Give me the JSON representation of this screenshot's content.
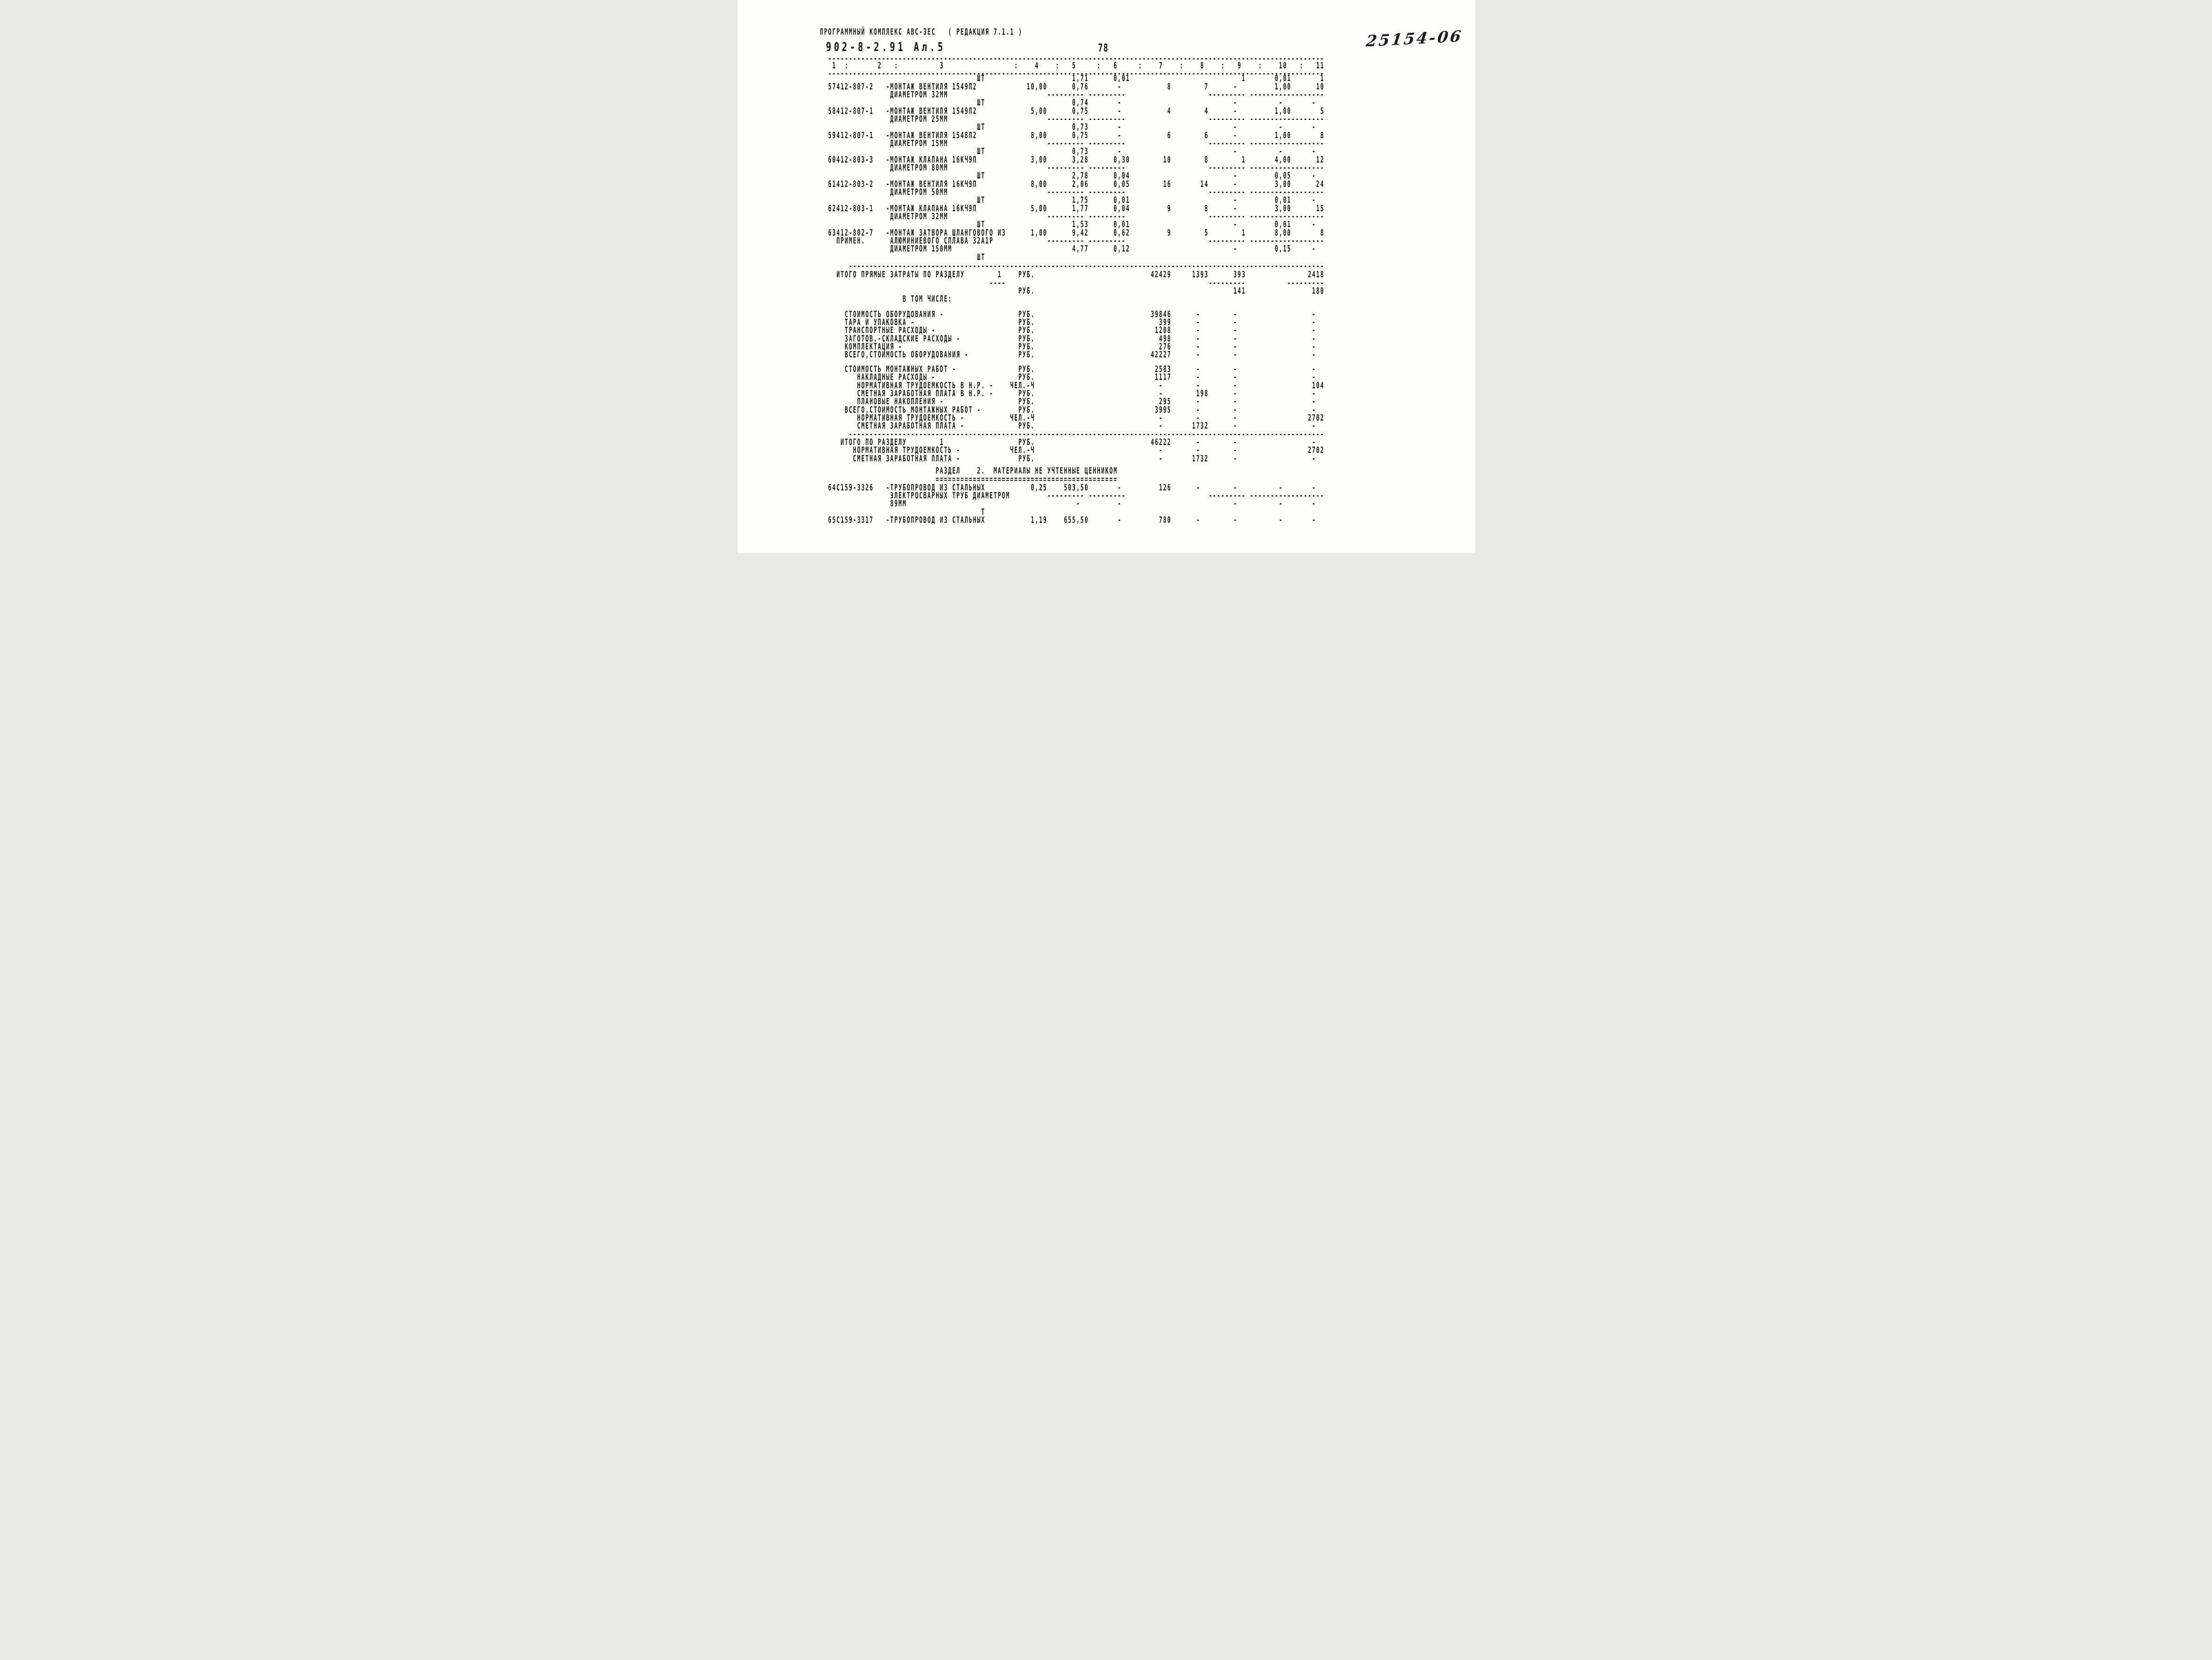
{
  "page": {
    "program_header": "ПРОГРАММНЫЙ КОМПЛЕКС АВС-3ЕС   ( РЕДАКЦИЯ 7.1.1 )",
    "doc_code": "902-8-2.91  Ал.5",
    "page_number": "78",
    "handwritten_mark": "25154-06"
  },
  "table": {
    "column_numbers": [
      "1",
      "2",
      "3",
      "4",
      "5",
      "6",
      "7",
      "8",
      "9",
      "10",
      "11"
    ],
    "column_separator": ":"
  },
  "section1": {
    "items": [
      {
        "num": "57",
        "code": "412-807-2",
        "unit": "ШТ",
        "name_lines": [
          "-МОНТАЖ ВЕНТИЛЯ 1549П2",
          "ДИАМЕТРОМ 32ММ"
        ],
        "pre": {
          "c5": "1,71",
          "c6": "0,01",
          "c9": "1",
          "c10": "0,01",
          "c11": "1"
        },
        "row": {
          "c4": "10,00",
          "c5": "0,76",
          "c6": "-",
          "c7": "8",
          "c8": "7",
          "c9": "-",
          "c10": "1,00",
          "c11": "10"
        }
      },
      {
        "num": "58",
        "code": "412-807-1",
        "unit": "ШТ",
        "name_lines": [
          "-МОНТАЖ ВЕНТИЛЯ 1549П2",
          "ДИАМЕТРОМ 25ММ"
        ],
        "pre": {
          "c5": "0,74",
          "c6": "-",
          "c9": "-",
          "c10": "-",
          "c11": "-"
        },
        "row": {
          "c4": "5,00",
          "c5": "0,75",
          "c6": "-",
          "c7": "4",
          "c8": "4",
          "c9": "-",
          "c10": "1,00",
          "c11": "5"
        }
      },
      {
        "num": "59",
        "code": "412-807-1",
        "unit": "ШТ",
        "name_lines": [
          "-МОНТАЖ ВЕНТИЛЯ 1548П2",
          "ДИАМЕТРОМ 15ММ"
        ],
        "pre": {
          "c5": "0,73",
          "c6": "-",
          "c9": "-",
          "c10": "-",
          "c11": "-"
        },
        "row": {
          "c4": "8,00",
          "c5": "0,75",
          "c6": "-",
          "c7": "6",
          "c8": "6",
          "c9": "-",
          "c10": "1,00",
          "c11": "8"
        }
      },
      {
        "num": "60",
        "code": "412-803-3",
        "unit": "ШТ",
        "name_lines": [
          "-МОНТАЖ КЛАПАНА 16КЧ9П",
          "ДИАМЕТРОМ 80ММ"
        ],
        "pre": {
          "c5": "0,73",
          "c6": "-",
          "c9": "-",
          "c10": "-",
          "c11": "-"
        },
        "row": {
          "c4": "3,00",
          "c5": "3,28",
          "c6": "0,30",
          "c7": "10",
          "c8": "8",
          "c9": "1",
          "c10": "4,00",
          "c11": "12"
        }
      },
      {
        "num": "61",
        "code": "412-803-2",
        "unit": "ШТ",
        "name_lines": [
          "-МОНТАЖ ВЕНТИЛЯ 16КЧ9П",
          "ДИАМЕТРОМ 50ММ"
        ],
        "pre": {
          "c5": "2,78",
          "c6": "0,04",
          "c9": "-",
          "c10": "0,05",
          "c11": "-"
        },
        "row": {
          "c4": "8,00",
          "c5": "2,06",
          "c6": "0,05",
          "c7": "16",
          "c8": "14",
          "c9": "-",
          "c10": "3,00",
          "c11": "24"
        }
      },
      {
        "num": "62",
        "code": "412-803-1",
        "unit": "ШТ",
        "name_lines": [
          "-МОНТАЖ КЛАПАНА 16КЧ9П",
          "ДИАМЕТРОМ 32ММ"
        ],
        "pre": {
          "c5": "1,75",
          "c6": "0,01",
          "c9": "-",
          "c10": "0,01",
          "c11": "-"
        },
        "row": {
          "c4": "5,00",
          "c5": "1,77",
          "c6": "0,04",
          "c7": "9",
          "c8": "8",
          "c9": "-",
          "c10": "3,00",
          "c11": "15"
        }
      },
      {
        "num": "63",
        "code": "412-802-7",
        "unit": "ШТ",
        "note": "ПРИМЕН.",
        "name_lines": [
          "-МОНТАЖ ЗАТВОРА ШЛАНГОВОГО ИЗ",
          "АЛЮМИНИЕВОГО СПЛАВА 32А1Р",
          "ДИАМЕТРОМ 150ММ"
        ],
        "pre": {
          "c5": "1,53",
          "c6": "0,01",
          "c9": "-",
          "c10": "0,01",
          "c11": "-"
        },
        "row": {
          "c4": "1,00",
          "c5": "9,42",
          "c6": "0,62",
          "c7": "9",
          "c8": "5",
          "c9": "1",
          "c10": "8,00",
          "c11": "8"
        },
        "post": {
          "c5": "4,77",
          "c6": "0,12",
          "c9": "-",
          "c10": "0,15",
          "c11": "-"
        },
        "trailing_unit": true
      }
    ],
    "totals": {
      "direct_label": "ИТОГО ПРЯМЫЕ ЗАТРАТЫ ПО РАЗДЕЛУ",
      "section_no": "1",
      "unit_rub": "РУБ.",
      "direct": {
        "c7": "42429",
        "c8": "1393",
        "c9": "393",
        "c11": "2418"
      },
      "direct_extra": {
        "c9": "141",
        "c11": "180"
      },
      "including_label": "В ТОМ ЧИСЛЕ:",
      "breakdown": [
        {
          "label": "СТОИМОСТЬ ОБОРУДОВАНИЯ -",
          "indent": 0,
          "unit": "РУБ.",
          "c7": "39846",
          "c8": "-",
          "c9": "-",
          "c11": "-"
        },
        {
          "label": "ТАРА И УПАКОВКА -",
          "indent": 0,
          "unit": "РУБ.",
          "c7": "399",
          "c8": "-",
          "c9": "-",
          "c11": "-"
        },
        {
          "label": "ТРАНСПОРТНЫЕ РАСХОДЫ -",
          "indent": 0,
          "unit": "РУБ.",
          "c7": "1208",
          "c8": "-",
          "c9": "-",
          "c11": "-"
        },
        {
          "label": "ЗАГОТОВ.-СКЛАДСКИЕ РАСХОДЫ -",
          "indent": 0,
          "unit": "РУБ.",
          "c7": "498",
          "c8": "-",
          "c9": "-",
          "c11": "-"
        },
        {
          "label": "КОМПЛЕКТАЦИЯ -",
          "indent": 0,
          "unit": "РУБ.",
          "c7": "276",
          "c8": "-",
          "c9": "-",
          "c11": "-"
        },
        {
          "label": "ВСЕГО,СТОИМОСТЬ ОБОРУДОВАНИЯ -",
          "indent": 0,
          "unit": "РУБ.",
          "c7": "42227",
          "c8": "-",
          "c9": "-",
          "c11": "-"
        },
        {
          "label": "СТОИМОСТЬ МОНТАЖНЫХ РАБОТ -",
          "indent": 0,
          "unit": "РУБ.",
          "c7": "2583",
          "c8": "-",
          "c9": "-",
          "c11": "-"
        },
        {
          "label": "НАКЛАДНЫЕ РАСХОДЫ -",
          "indent": 1,
          "unit": "РУБ.",
          "c7": "1117",
          "c8": "-",
          "c9": "-",
          "c11": "-"
        },
        {
          "label": "НОРМАТИВНАЯ ТРУДОЕМКОСТЬ В Н.Р. -",
          "indent": 1,
          "unit": "ЧЕЛ.-Ч",
          "c7": "-",
          "c8": "-",
          "c9": "-",
          "c11": "104"
        },
        {
          "label": "СМЕТНАЯ ЗАРАБОТНАЯ ПЛАТА В Н.Р. -",
          "indent": 1,
          "unit": "РУБ.",
          "c7": "-",
          "c8": "198",
          "c9": "-",
          "c11": "-"
        },
        {
          "label": "ПЛАНОВЫЕ НАКОПЛЕНИЯ -",
          "indent": 1,
          "unit": "РУБ.",
          "c7": "295",
          "c8": "-",
          "c9": "-",
          "c11": "-"
        },
        {
          "label": "ВСЕГО,СТОИМОСТЬ МОНТАЖНЫХ РАБОТ -",
          "indent": 0,
          "unit": "РУБ.",
          "c7": "3995",
          "c8": "-",
          "c9": "-",
          "c11": "-"
        },
        {
          "label": "НОРМАТИВНАЯ ТРУДОЕМКОСТЬ -",
          "indent": 1,
          "unit": "ЧЕЛ.-Ч",
          "c7": "-",
          "c8": "-",
          "c9": "-",
          "c11": "2702"
        },
        {
          "label": "СМЕТНАЯ ЗАРАБОТНАЯ ПЛАТА -",
          "indent": 1,
          "unit": "РУБ.",
          "c7": "-",
          "c8": "1732",
          "c9": "-",
          "c11": "-"
        }
      ],
      "section_rows": [
        {
          "label": "ИТОГО ПО РАЗДЕЛУ",
          "section_no": "1",
          "unit": "РУБ.",
          "c7": "46222",
          "c8": "-",
          "c9": "-",
          "c11": "-"
        },
        {
          "label": "НОРМАТИВНАЯ ТРУДОЕМКОСТЬ -",
          "unit": "ЧЕЛ.-Ч",
          "c7": "-",
          "c8": "-",
          "c9": "-",
          "c11": "2702"
        },
        {
          "label": "СМЕТНАЯ ЗАРАБОТНАЯ ПЛАТА -",
          "unit": "РУБ.",
          "c7": "-",
          "c8": "1732",
          "c9": "-",
          "c11": "-"
        }
      ]
    }
  },
  "section2": {
    "title": "РАЗДЕЛ    2.  МАТЕРИАЛЫ НЕ УЧТЕННЫЕ ЦЕННИКОМ",
    "items": [
      {
        "num": "64",
        "code": "С159-3326",
        "unit": "",
        "name_lines": [
          "-ТРУБОПРОВОД ИЗ СТАЛЬНЫХ",
          "ЭЛЕКТРОСВАРНЫХ ТРУБ ДИАМЕТРОМ",
          "89ММ"
        ],
        "row": {
          "c4": "0,25",
          "c5": "503,50",
          "c6": "-",
          "c7": "126",
          "c8": "-",
          "c9": "-",
          "c10": "-",
          "c11": "-"
        },
        "post": {
          "c5": "-",
          "c6": "-",
          "c9": "-",
          "c10": "-",
          "c11": "-"
        }
      },
      {
        "num": "65",
        "code": "С159-3317",
        "unit": "Т",
        "name_lines": [
          "-ТРУБОПРОВОД ИЗ СТАЛЬНЫХ"
        ],
        "pre": {},
        "row": {
          "c4": "1,19",
          "c5": "655,50",
          "c6": "-",
          "c7": "780",
          "c8": "-",
          "c9": "-",
          "c10": "-",
          "c11": "-"
        }
      }
    ]
  }
}
